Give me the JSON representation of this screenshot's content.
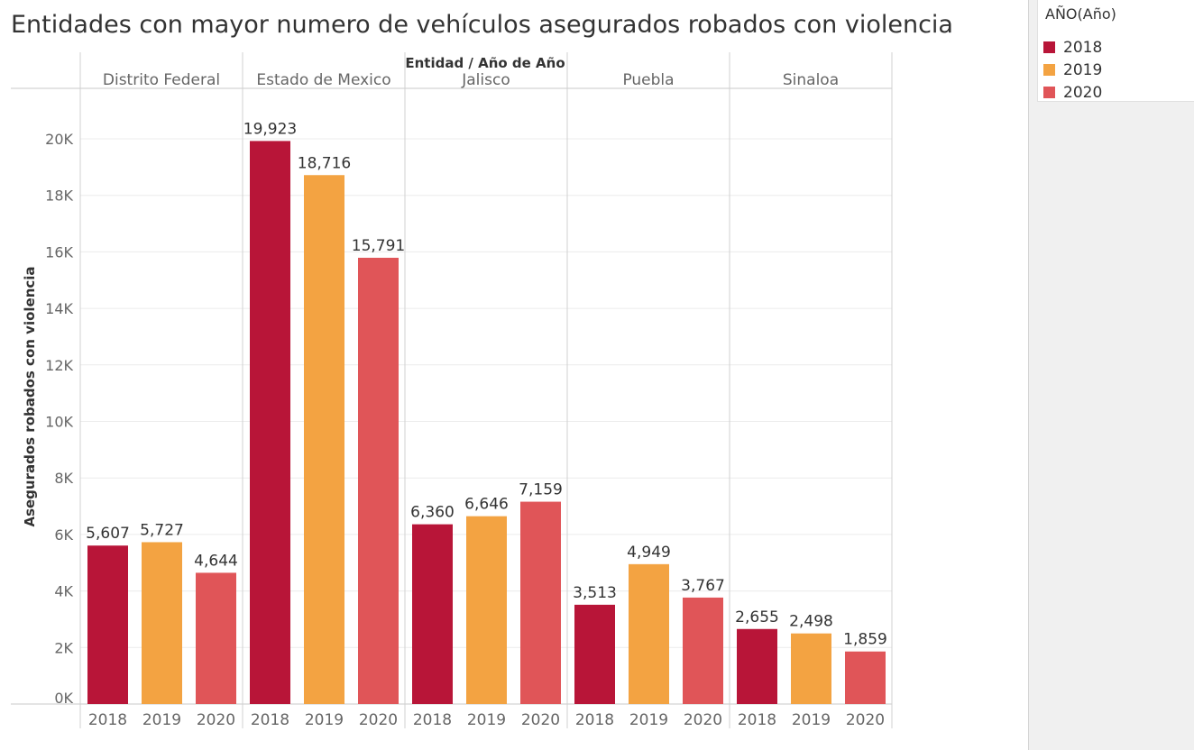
{
  "chart_data": {
    "type": "bar",
    "title": "Entidades con mayor numero de vehículos asegurados robados con violencia",
    "header_label": "Entidad  /  Año de Año",
    "ylabel": "Asegurados robados con violencia",
    "ylim": [
      0,
      21000
    ],
    "yticks": [
      0,
      2000,
      4000,
      6000,
      8000,
      10000,
      12000,
      14000,
      16000,
      18000,
      20000
    ],
    "ytick_labels": [
      "0K",
      "2K",
      "4K",
      "6K",
      "8K",
      "10K",
      "12K",
      "14K",
      "16K",
      "18K",
      "20K"
    ],
    "grid": true,
    "legend_position": "top-right",
    "legend_title": "AÑO(Año)",
    "categories": [
      "Distrito Federal",
      "Estado de Mexico",
      "Jalisco",
      "Puebla",
      "Sinaloa"
    ],
    "years": [
      "2018",
      "2019",
      "2020"
    ],
    "series": [
      {
        "name": "2018",
        "color": "#b81538",
        "values": [
          5607,
          19923,
          6360,
          3513,
          2655
        ],
        "labels": [
          "5,607",
          "19,923",
          "6,360",
          "3,513",
          "2,655"
        ]
      },
      {
        "name": "2019",
        "color": "#f3a342",
        "values": [
          5727,
          18716,
          6646,
          4949,
          2498
        ],
        "labels": [
          "5,727",
          "18,716",
          "6,646",
          "4,949",
          "2,498"
        ]
      },
      {
        "name": "2020",
        "color": "#e05558",
        "values": [
          4644,
          15791,
          7159,
          3767,
          1859
        ],
        "labels": [
          "4,644",
          "15,791",
          "7,159",
          "3,767",
          "1,859"
        ]
      }
    ]
  }
}
